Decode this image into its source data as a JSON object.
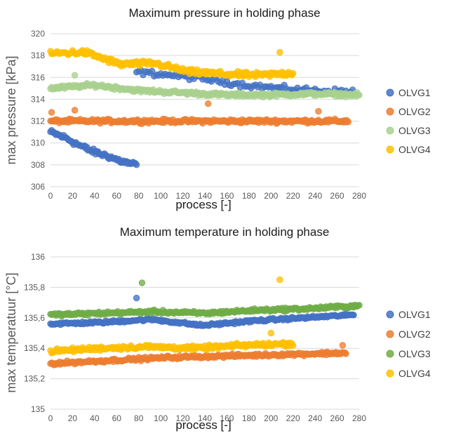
{
  "chart_data": [
    {
      "type": "scatter",
      "title": "Maximum pressure in holding phase",
      "xlabel": "process [-]",
      "ylabel": "max pressure [kPa]",
      "xlim": [
        0,
        280
      ],
      "ylim": [
        306,
        320
      ],
      "x_ticks": [
        "0",
        "20",
        "40",
        "60",
        "80",
        "100",
        "120",
        "140",
        "160",
        "180",
        "200",
        "220",
        "240",
        "260",
        "280"
      ],
      "y_ticks": [
        "306",
        "308",
        "310",
        "312",
        "314",
        "316",
        "318",
        "320"
      ],
      "grid": true,
      "legend": "right",
      "series": [
        {
          "name": "OLVG1",
          "color": "#4472c4",
          "segments": [
            {
              "x_start": 0,
              "x_end": 78,
              "step": 1,
              "y": [
                311,
                310.5,
                309.8,
                309.2,
                308.8,
                308.3,
                308
              ],
              "noise": 0.35
            },
            {
              "x_start": 78,
              "x_end": 275,
              "step": 2,
              "y": [
                316.5,
                316.2,
                315.8,
                315.3,
                315.0,
                314.8,
                314.7
              ],
              "noise": 0.35
            }
          ],
          "outliers": []
        },
        {
          "name": "OLVG2",
          "color": "#ed7d31",
          "segments": [
            {
              "x_start": 0,
              "x_end": 270,
              "step": 1,
              "y": [
                312,
                312
              ],
              "noise": 0.25
            }
          ],
          "outliers": [
            {
              "x": 1,
              "y": 312.8
            },
            {
              "x": 22,
              "y": 313
            },
            {
              "x": 143,
              "y": 313.6
            },
            {
              "x": 243,
              "y": 312.9
            }
          ]
        },
        {
          "name": "OLVG3",
          "color": "#a9d18e",
          "segments": [
            {
              "x_start": 0,
              "x_end": 280,
              "step": 1,
              "y": [
                315,
                315.3,
                314.8,
                314.6,
                314.4,
                314.4,
                314.5,
                314.4
              ],
              "noise": 0.25
            }
          ],
          "outliers": [
            {
              "x": 22,
              "y": 316.2
            }
          ]
        },
        {
          "name": "OLVG4",
          "color": "#ffc000",
          "segments": [
            {
              "x_start": 0,
              "x_end": 220,
              "step": 1,
              "y": [
                318.2,
                318.3,
                317.2,
                317.3,
                316.5,
                316.3,
                316.2,
                316.4
              ],
              "noise": 0.35
            }
          ],
          "outliers": [
            {
              "x": 208,
              "y": 318.3
            }
          ]
        }
      ]
    },
    {
      "type": "scatter",
      "title": "Maximum temperature in holding phase",
      "xlabel": "process [-]",
      "ylabel": "max  temperatuur  [°C]",
      "xlim": [
        0,
        280
      ],
      "ylim": [
        135,
        136
      ],
      "x_ticks": [
        "0",
        "20",
        "40",
        "60",
        "80",
        "100",
        "120",
        "140",
        "160",
        "180",
        "200",
        "220",
        "240",
        "260",
        "280"
      ],
      "y_ticks": [
        "135",
        "135,2",
        "135,4",
        "135,6",
        "135,8",
        "136"
      ],
      "grid": true,
      "legend": "right",
      "series": [
        {
          "name": "OLVG1",
          "color": "#4472c4",
          "segments": [
            {
              "x_start": 0,
              "x_end": 275,
              "step": 1,
              "y": [
                135.56,
                135.57,
                135.59,
                135.55,
                135.58,
                135.6,
                135.62
              ],
              "noise": 0.012
            }
          ],
          "outliers": [
            {
              "x": 78,
              "y": 135.73
            }
          ]
        },
        {
          "name": "OLVG2",
          "color": "#ed7d31",
          "segments": [
            {
              "x_start": 0,
              "x_end": 268,
              "step": 1,
              "y": [
                135.3,
                135.32,
                135.34,
                135.35,
                135.36,
                135.37
              ],
              "noise": 0.015
            }
          ],
          "outliers": [
            {
              "x": 265,
              "y": 135.42
            }
          ]
        },
        {
          "name": "OLVG3",
          "color": "#70ad47",
          "segments": [
            {
              "x_start": 0,
              "x_end": 280,
              "step": 1,
              "y": [
                135.62,
                135.63,
                135.64,
                135.63,
                135.65,
                135.66,
                135.68
              ],
              "noise": 0.015
            }
          ],
          "outliers": [
            {
              "x": 83,
              "y": 135.83
            }
          ]
        },
        {
          "name": "OLVG4",
          "color": "#ffc000",
          "segments": [
            {
              "x_start": 0,
              "x_end": 220,
              "step": 1,
              "y": [
                135.38,
                135.4,
                135.41,
                135.4,
                135.42,
                135.43
              ],
              "noise": 0.02
            }
          ],
          "outliers": [
            {
              "x": 208,
              "y": 135.85
            },
            {
              "x": 200,
              "y": 135.5
            }
          ]
        }
      ]
    }
  ]
}
